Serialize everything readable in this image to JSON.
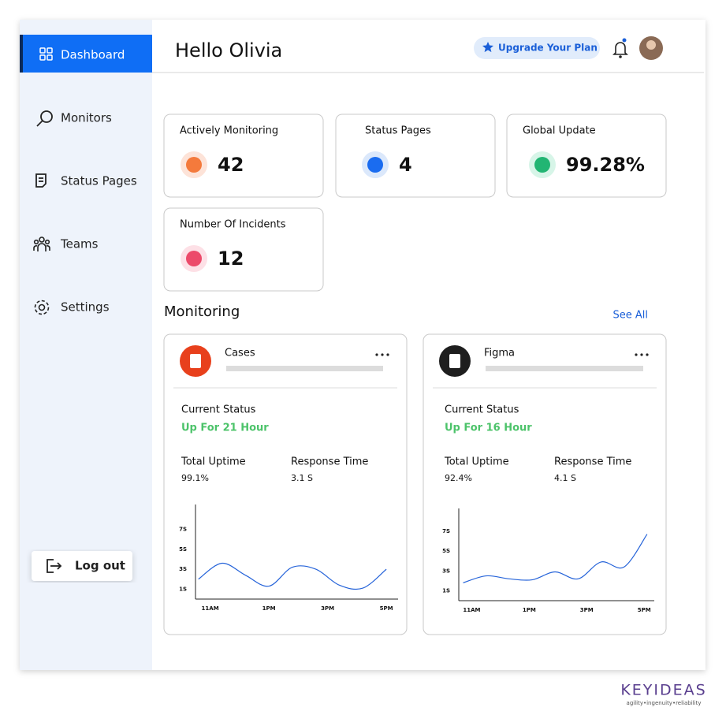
{
  "sidebar": {
    "nav": [
      "Dashboard",
      "Monitors",
      "Status Pages",
      "Teams",
      "Settings"
    ],
    "logout": "Log out"
  },
  "header": {
    "greeting": "Hello Olivia",
    "upgrade": "Upgrade Your Plan"
  },
  "stats": [
    {
      "label": "Actively Monitoring",
      "value": "42"
    },
    {
      "label": "Status Pages",
      "value": "4"
    },
    {
      "label": "Global Update",
      "value": "99.28%"
    },
    {
      "label": "Number Of Incidents",
      "value": "12"
    }
  ],
  "monitoring": {
    "title": "Monitoring",
    "see_all": "See All",
    "monitors": [
      {
        "name": "Cases",
        "status_label": "Current Status",
        "status": "Up For 21 Hour",
        "uptime_label": "Total Uptime",
        "uptime": "99.1%",
        "response_label": "Response Time",
        "response": "3.1 S",
        "chart": {
          "type": "line",
          "xlim": [
            10.5,
            17.4
          ],
          "ylim": [
            0,
            9.5
          ],
          "xticks": [
            {
              "value": 11,
              "label": "11AM"
            },
            {
              "value": 13,
              "label": "1PM"
            },
            {
              "value": 15,
              "label": "3PM"
            },
            {
              "value": 17,
              "label": "5PM"
            }
          ],
          "yticks": [
            {
              "value": 1,
              "label": "1S"
            },
            {
              "value": 3,
              "label": "3S"
            },
            {
              "value": 5,
              "label": "5S"
            },
            {
              "value": 7,
              "label": "7S"
            }
          ],
          "x": [
            10.6,
            11.4,
            12.2,
            13.0,
            13.8,
            14.6,
            15.4,
            16.2,
            17.0
          ],
          "values": [
            2.0,
            3.6,
            2.4,
            1.3,
            3.2,
            3.0,
            1.4,
            1.1,
            3.0
          ],
          "color": "#2563d9"
        }
      },
      {
        "name": "Figma",
        "status_label": "Current Status",
        "status": "Up For 16 Hour",
        "uptime_label": "Total Uptime",
        "uptime": "92.4%",
        "response_label": "Response Time",
        "response": "4.1 S",
        "chart": {
          "type": "line",
          "xlim": [
            10.55,
            17.35
          ],
          "ylim": [
            0,
            9.3
          ],
          "xticks": [
            {
              "value": 11,
              "label": "11AM"
            },
            {
              "value": 13,
              "label": "1PM"
            },
            {
              "value": 15,
              "label": "3PM"
            },
            {
              "value": 17,
              "label": "5PM"
            }
          ],
          "yticks": [
            {
              "value": 1,
              "label": "1S"
            },
            {
              "value": 3,
              "label": "3S"
            },
            {
              "value": 5,
              "label": "5S"
            },
            {
              "value": 7,
              "label": "7S"
            }
          ],
          "x": [
            10.7,
            11.5,
            12.3,
            13.1,
            13.9,
            14.7,
            15.5,
            16.3,
            17.1
          ],
          "values": [
            1.8,
            2.5,
            2.2,
            2.1,
            2.9,
            2.2,
            3.9,
            3.4,
            6.7
          ],
          "color": "#2563d9"
        }
      }
    ]
  },
  "brand": {
    "name": "KEYIDEAS",
    "tagline": "agility•ingenuity•reliability"
  }
}
